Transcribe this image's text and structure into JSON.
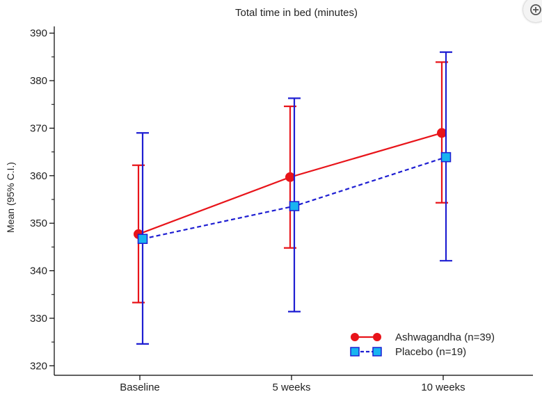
{
  "chart_data": {
    "type": "line",
    "title": "Total time in bed (minutes)",
    "xlabel": "",
    "ylabel": "Mean (95% C.I.)",
    "categories": [
      "Baseline",
      "5 weeks",
      "10 weeks"
    ],
    "ylim": [
      318,
      392
    ],
    "yticks": [
      320,
      330,
      340,
      350,
      360,
      370,
      380,
      390
    ],
    "series": [
      {
        "name": "Ashwagandha (n=39)",
        "color": "#e8141a",
        "marker": "circle",
        "line_style": "solid",
        "values": [
          347.7,
          359.7,
          369.0
        ],
        "ci_low": [
          333.3,
          344.8,
          354.3
        ],
        "ci_high": [
          362.2,
          374.6,
          383.9
        ]
      },
      {
        "name": "Placebo (n=19)",
        "color": "#1e1ed2",
        "marker_fill": "#18b4f0",
        "marker": "square",
        "line_style": "dashed",
        "values": [
          346.7,
          353.6,
          363.9
        ],
        "ci_low": [
          324.6,
          331.4,
          342.1
        ],
        "ci_high": [
          369.0,
          376.3,
          386.0
        ]
      }
    ],
    "legend": {
      "position": "bottom-right"
    }
  },
  "ui": {
    "zoom_icon": "zoom-in-icon"
  }
}
